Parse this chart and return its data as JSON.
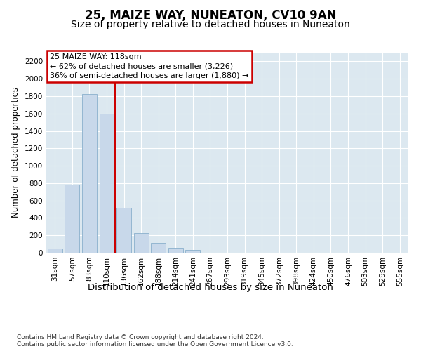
{
  "title": "25, MAIZE WAY, NUNEATON, CV10 9AN",
  "subtitle": "Size of property relative to detached houses in Nuneaton",
  "xlabel": "Distribution of detached houses by size in Nuneaton",
  "ylabel": "Number of detached properties",
  "categories": [
    "31sqm",
    "57sqm",
    "83sqm",
    "110sqm",
    "136sqm",
    "162sqm",
    "188sqm",
    "214sqm",
    "241sqm",
    "267sqm",
    "293sqm",
    "319sqm",
    "345sqm",
    "372sqm",
    "398sqm",
    "424sqm",
    "450sqm",
    "476sqm",
    "503sqm",
    "529sqm",
    "555sqm"
  ],
  "values": [
    50,
    780,
    1820,
    1600,
    520,
    230,
    110,
    55,
    30,
    0,
    0,
    0,
    0,
    0,
    0,
    0,
    0,
    0,
    0,
    0,
    0
  ],
  "bar_color": "#c8d8ea",
  "bar_edge_color": "#8ab0cc",
  "red_line_x": 3.5,
  "annotation_text": "25 MAIZE WAY: 118sqm\n← 62% of detached houses are smaller (3,226)\n36% of semi-detached houses are larger (1,880) →",
  "annotation_box_facecolor": "#ffffff",
  "annotation_box_edgecolor": "#cc0000",
  "red_line_color": "#cc0000",
  "ylim": [
    0,
    2300
  ],
  "yticks": [
    0,
    200,
    400,
    600,
    800,
    1000,
    1200,
    1400,
    1600,
    1800,
    2000,
    2200
  ],
  "footer_text": "Contains HM Land Registry data © Crown copyright and database right 2024.\nContains public sector information licensed under the Open Government Licence v3.0.",
  "fig_facecolor": "#ffffff",
  "ax_facecolor": "#dce8f0",
  "grid_color": "#ffffff",
  "title_fontsize": 12,
  "subtitle_fontsize": 10,
  "xlabel_fontsize": 9.5,
  "ylabel_fontsize": 8.5,
  "tick_fontsize": 7.5,
  "annotation_fontsize": 8,
  "footer_fontsize": 6.5
}
